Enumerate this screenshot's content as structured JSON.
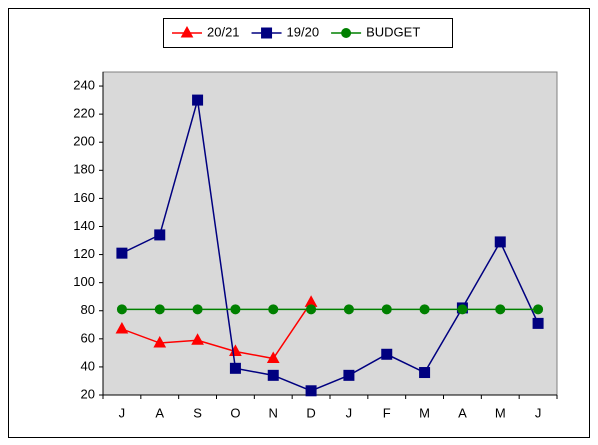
{
  "chart_data": {
    "type": "line",
    "categories": [
      "J",
      "A",
      "S",
      "O",
      "N",
      "D",
      "J",
      "F",
      "M",
      "A",
      "M",
      "J"
    ],
    "series": [
      {
        "name": "20/21",
        "color": "#ff0000",
        "marker": "triangle",
        "values": [
          67,
          57,
          59,
          51,
          46,
          86,
          null,
          null,
          null,
          null,
          null,
          null
        ]
      },
      {
        "name": "19/20",
        "color": "#000080",
        "marker": "square",
        "values": [
          121,
          134,
          230,
          39,
          34,
          23,
          34,
          49,
          36,
          82,
          129,
          71
        ]
      },
      {
        "name": "BUDGET",
        "color": "#008000",
        "marker": "circle",
        "values": [
          81,
          81,
          81,
          81,
          81,
          81,
          81,
          81,
          81,
          81,
          81,
          81
        ]
      }
    ],
    "ylim": [
      20,
      250
    ],
    "yticks": [
      20,
      40,
      60,
      80,
      100,
      120,
      140,
      160,
      180,
      200,
      220,
      240
    ],
    "legend": "top"
  }
}
